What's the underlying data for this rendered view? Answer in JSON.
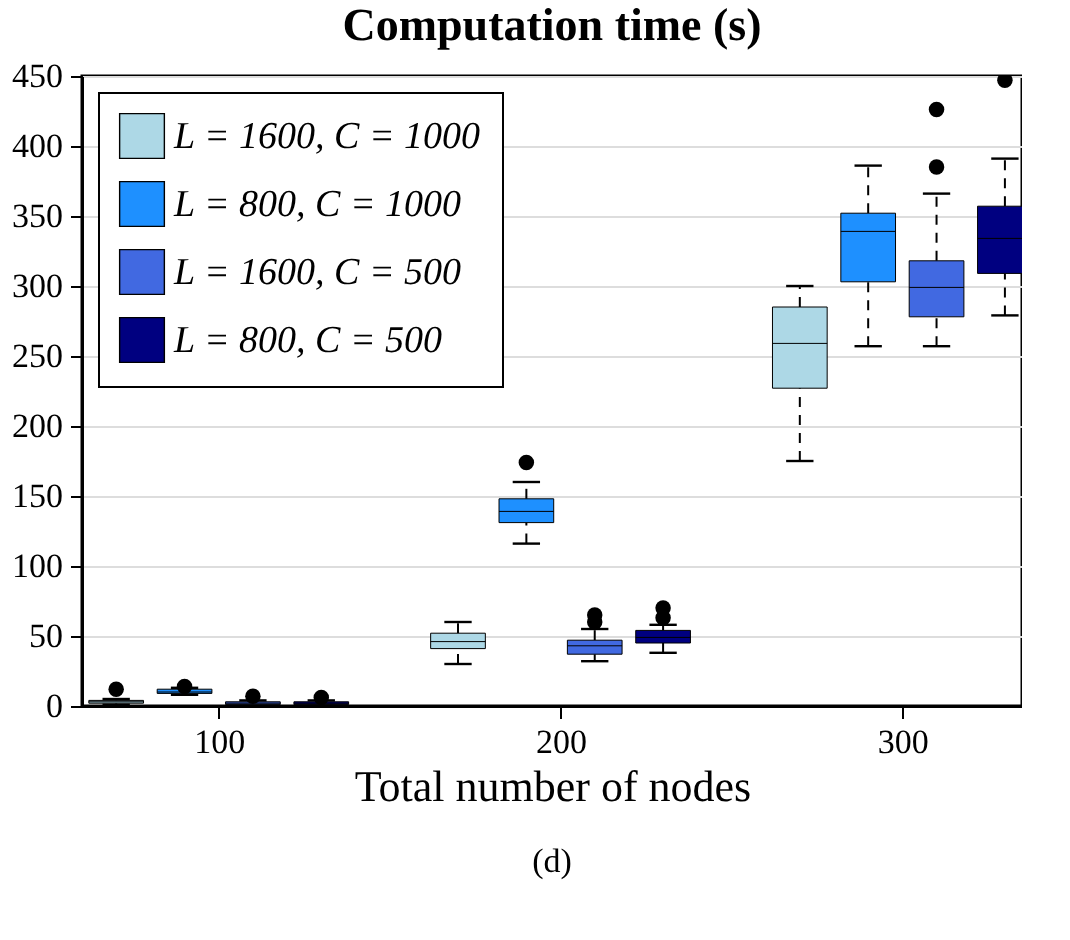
{
  "chart_data": {
    "type": "box",
    "title": "Computation time (s)",
    "xlabel": "Total number of nodes",
    "annotations": [
      "(d)"
    ],
    "xlim": [
      60,
      335
    ],
    "xticks": [
      100,
      200,
      300
    ],
    "ylim": [
      0,
      450
    ],
    "yticks": [
      0,
      50,
      100,
      150,
      200,
      250,
      300,
      350,
      400,
      450
    ],
    "grid": "y",
    "legend": "top left",
    "line_style": "dashed",
    "series": [
      {
        "name": "L = 1600, C = 1000",
        "color": "#add8e6",
        "x": [
          70,
          170,
          270
        ],
        "boxes": [
          {
            "low": 1,
            "q1": 2,
            "median": 3,
            "q3": 4,
            "high": 5,
            "outliers": [
              12
            ]
          },
          {
            "low": 30,
            "q1": 41,
            "median": 46,
            "q3": 52,
            "high": 60
          },
          {
            "low": 175,
            "q1": 227,
            "median": 259,
            "q3": 285,
            "high": 300
          }
        ]
      },
      {
        "name": "L = 800, C = 1000",
        "color": "#1e90ff",
        "x": [
          90,
          190,
          290
        ],
        "boxes": [
          {
            "low": 8,
            "q1": 9,
            "median": 10,
            "q3": 12,
            "high": 13,
            "outliers": [
              14
            ]
          },
          {
            "low": 116,
            "q1": 131,
            "median": 139,
            "q3": 148,
            "high": 160,
            "outliers": [
              174
            ]
          },
          {
            "low": 257,
            "q1": 303,
            "median": 339,
            "q3": 352,
            "high": 386
          }
        ]
      },
      {
        "name": "L = 1600, C = 500",
        "color": "#4169e1",
        "x": [
          110,
          210,
          310
        ],
        "boxes": [
          {
            "low": 0,
            "q1": 1,
            "median": 2,
            "q3": 3,
            "high": 4,
            "outliers": [
              7
            ]
          },
          {
            "low": 32,
            "q1": 37,
            "median": 43,
            "q3": 47,
            "high": 55,
            "outliers": [
              60,
              65
            ]
          },
          {
            "low": 257,
            "q1": 278,
            "median": 299,
            "q3": 318,
            "high": 366,
            "outliers": [
              385,
              426
            ]
          }
        ]
      },
      {
        "name": "L = 800, C = 500",
        "color": "#000080",
        "x": [
          130,
          230,
          330
        ],
        "boxes": [
          {
            "low": 0,
            "q1": 1,
            "median": 2,
            "q3": 3,
            "high": 4,
            "outliers": [
              6
            ]
          },
          {
            "low": 38,
            "q1": 45,
            "median": 49,
            "q3": 54,
            "high": 58,
            "outliers": [
              63,
              70
            ]
          },
          {
            "low": 279,
            "q1": 309,
            "median": 334,
            "q3": 357,
            "high": 391,
            "outliers": [
              447
            ]
          }
        ]
      }
    ]
  }
}
